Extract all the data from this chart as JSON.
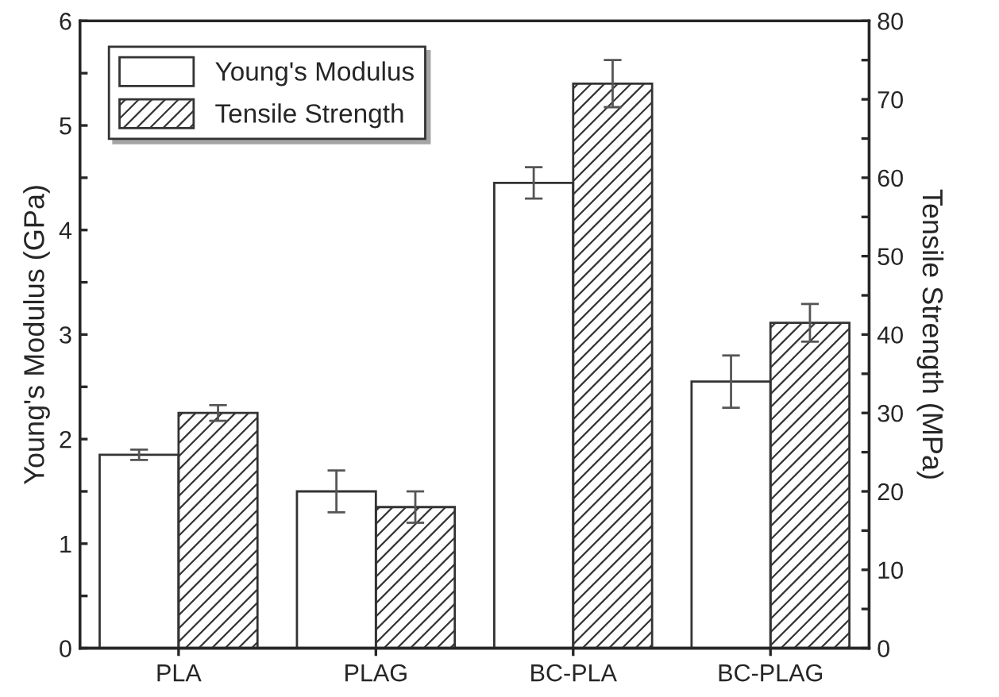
{
  "chart_data": {
    "type": "bar",
    "categories": [
      "PLA",
      "PLAG",
      "BC-PLA",
      "BC-PLAG"
    ],
    "ylabel": "Young's Modulus (GPa)",
    "y2label": "Tensile Strength (MPa)",
    "series": [
      {
        "name": "Young's Modulus",
        "color": "#ffffff",
        "values": [
          1.85,
          1.5,
          4.45,
          2.55
        ],
        "errors": [
          0.05,
          0.2,
          0.15,
          0.25
        ]
      },
      {
        "name": "Tensile Strength",
        "color": "#333333",
        "axis": "y2",
        "values": [
          30,
          18,
          72,
          41.5
        ],
        "errors": [
          1,
          2,
          3,
          2.4
        ]
      }
    ],
    "ylim": [
      0,
      6
    ],
    "yticks": [
      0,
      {
        "value": 0.5,
        "label": null
      },
      1,
      {
        "value": 1.5,
        "label": null
      },
      2,
      {
        "value": 2.5,
        "label": null
      },
      3,
      {
        "value": 3.5,
        "label": null
      },
      4,
      {
        "value": 4.5,
        "label": null
      },
      5,
      {
        "value": 5.5,
        "label": null
      },
      6
    ],
    "y2lim": [
      0,
      80
    ],
    "y2ticks": [
      0,
      {
        "value": 5,
        "label": null
      },
      10,
      {
        "value": 15,
        "label": null
      },
      20,
      {
        "value": 25,
        "label": null
      },
      30,
      {
        "value": 35,
        "label": null
      },
      40,
      {
        "value": 45,
        "label": null
      },
      50,
      {
        "value": 55,
        "label": null
      },
      60,
      {
        "value": 65,
        "label": null
      },
      70,
      {
        "value": 75,
        "label": null
      },
      80
    ],
    "legend": "top left",
    "grid": false
  }
}
